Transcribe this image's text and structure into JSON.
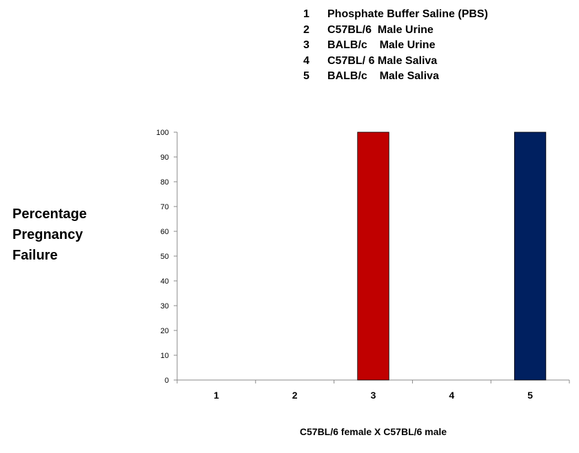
{
  "legend": [
    {
      "num": "1",
      "text": "Phosphate Buffer Saline (PBS)"
    },
    {
      "num": "2",
      "text": "C57BL/6  Male Urine"
    },
    {
      "num": "3",
      "text": "BALB/c    Male Urine"
    },
    {
      "num": "4",
      "text": "C57BL/ 6 Male Saliva"
    },
    {
      "num": "5",
      "text": "BALB/c    Male Saliva"
    }
  ],
  "ylabel_lines": [
    "Percentage",
    "Pregnancy",
    "Failure"
  ],
  "chart_data": {
    "type": "bar",
    "categories": [
      "1",
      "2",
      "3",
      "4",
      "5"
    ],
    "values": [
      0,
      0,
      100,
      0,
      100
    ],
    "colors": [
      "#c00000",
      "#c00000",
      "#c00000",
      "#002060",
      "#002060"
    ],
    "yticks": [
      0,
      10,
      20,
      30,
      40,
      50,
      60,
      70,
      80,
      90,
      100
    ],
    "ylim": [
      0,
      100
    ],
    "xlabel": "C57BL/6 female X C57BL/6 male",
    "ylabel": "Percentage Pregnancy Failure",
    "grid": false
  }
}
